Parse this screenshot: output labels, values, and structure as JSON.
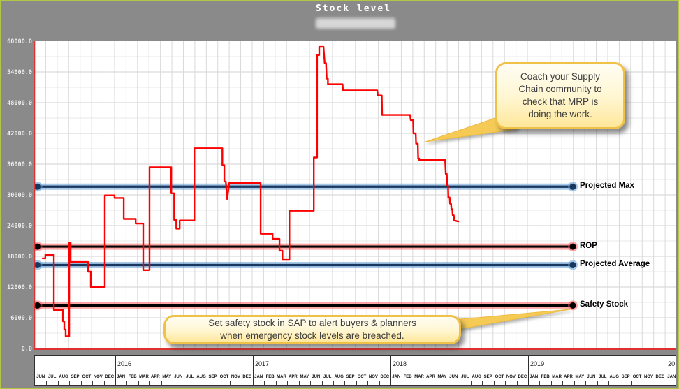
{
  "title": "Stock level",
  "subtitle": {
    "redacted": true
  },
  "chart_data": {
    "type": "line",
    "title": "Stock level",
    "xlabel": "",
    "ylabel": "",
    "ylim": [
      0,
      60000
    ],
    "y_tick_step": 6000,
    "y_minor_step": 3000,
    "y_tick_labels": [
      "60000.0",
      "54000.0",
      "48000.0",
      "42000.0",
      "36000.0",
      "30000.0",
      "24000.0",
      "18000.0",
      "12000.0",
      "6000.0",
      "0.0"
    ],
    "grid": true,
    "x_months": [
      "JUN",
      "JUL",
      "AUG",
      "SEP",
      "OCT",
      "NOV",
      "DEC",
      "JAN",
      "FEB",
      "MAR",
      "APR",
      "MAY",
      "JUN",
      "JUL",
      "AUG",
      "SEP",
      "OCT",
      "NOV",
      "DEC",
      "JAN",
      "FEB",
      "MAR",
      "APR",
      "MAY",
      "JUN",
      "JUL",
      "AUG",
      "SEP",
      "OCT",
      "NOV",
      "DEC",
      "JAN",
      "FEB",
      "MAR",
      "APR",
      "MAY",
      "JUN",
      "JUL",
      "AUG",
      "SEP",
      "OCT",
      "NOV",
      "DEC",
      "JAN",
      "FEB",
      "MAR",
      "APR",
      "MAY",
      "JUN",
      "JUL",
      "AUG",
      "SEP",
      "OCT",
      "NOV",
      "DEC",
      "JAN"
    ],
    "x_years": [
      {
        "label": "",
        "months": 7
      },
      {
        "label": "2016",
        "months": 12
      },
      {
        "label": "2017",
        "months": 12
      },
      {
        "label": "2018",
        "months": 12
      },
      {
        "label": "2019",
        "months": 12
      },
      {
        "label": "20",
        "months": 1
      }
    ],
    "series": {
      "name": "Stock level",
      "color": "#ff0000",
      "x_unit": "months since JUN 2015",
      "points": [
        [
          0.73,
          17600
        ],
        [
          0.97,
          17600
        ],
        [
          0.97,
          18300
        ],
        [
          1.71,
          18300
        ],
        [
          1.71,
          7500
        ],
        [
          2.5,
          7500
        ],
        [
          2.5,
          5300
        ],
        [
          2.62,
          5300
        ],
        [
          2.62,
          3700
        ],
        [
          2.74,
          3700
        ],
        [
          2.74,
          2400
        ],
        [
          3.05,
          2400
        ],
        [
          3.05,
          20700
        ],
        [
          3.17,
          20700
        ],
        [
          3.17,
          16900
        ],
        [
          4.69,
          16900
        ],
        [
          4.69,
          15000
        ],
        [
          4.93,
          15000
        ],
        [
          4.93,
          12000
        ],
        [
          6.15,
          12000
        ],
        [
          6.15,
          29900
        ],
        [
          7.0,
          29900
        ],
        [
          7.0,
          29400
        ],
        [
          7.8,
          29400
        ],
        [
          7.8,
          25300
        ],
        [
          8.84,
          25300
        ],
        [
          8.84,
          24400
        ],
        [
          9.5,
          24400
        ],
        [
          9.5,
          15300
        ],
        [
          10.05,
          15300
        ],
        [
          10.05,
          35400
        ],
        [
          11.95,
          35400
        ],
        [
          11.95,
          30300
        ],
        [
          12.2,
          30300
        ],
        [
          12.2,
          25100
        ],
        [
          12.38,
          25100
        ],
        [
          12.38,
          23400
        ],
        [
          12.68,
          23400
        ],
        [
          12.68,
          25000
        ],
        [
          13.96,
          25000
        ],
        [
          13.96,
          39100
        ],
        [
          16.4,
          39100
        ],
        [
          16.4,
          35800
        ],
        [
          16.57,
          35800
        ],
        [
          16.57,
          32600
        ],
        [
          16.7,
          32600
        ],
        [
          16.82,
          29200
        ],
        [
          17.0,
          32300
        ],
        [
          19.74,
          32300
        ],
        [
          19.74,
          22400
        ],
        [
          20.78,
          22400
        ],
        [
          20.78,
          21400
        ],
        [
          21.38,
          21400
        ],
        [
          21.38,
          19100
        ],
        [
          21.64,
          19100
        ],
        [
          21.64,
          17300
        ],
        [
          22.25,
          17300
        ],
        [
          22.25,
          26900
        ],
        [
          24.37,
          26900
        ],
        [
          24.37,
          37300
        ],
        [
          24.66,
          37300
        ],
        [
          24.66,
          57300
        ],
        [
          24.85,
          57300
        ],
        [
          24.85,
          58900
        ],
        [
          25.22,
          58900
        ],
        [
          25.32,
          55700
        ],
        [
          25.44,
          55700
        ],
        [
          25.5,
          52700
        ],
        [
          25.6,
          52700
        ],
        [
          25.6,
          51600
        ],
        [
          26.88,
          51600
        ],
        [
          26.92,
          50400
        ],
        [
          29.9,
          50400
        ],
        [
          29.96,
          49400
        ],
        [
          30.3,
          49400
        ],
        [
          30.33,
          45600
        ],
        [
          32.77,
          45600
        ],
        [
          32.82,
          44600
        ],
        [
          33.03,
          44600
        ],
        [
          33.06,
          42000
        ],
        [
          33.26,
          42000
        ],
        [
          33.29,
          40000
        ],
        [
          33.44,
          40000
        ],
        [
          33.47,
          37100
        ],
        [
          33.56,
          37100
        ],
        [
          33.56,
          36800
        ],
        [
          35.82,
          36800
        ],
        [
          35.88,
          34100
        ],
        [
          35.97,
          34100
        ],
        [
          36.0,
          31800
        ],
        [
          36.08,
          31800
        ],
        [
          36.1,
          29500
        ],
        [
          36.22,
          29500
        ],
        [
          36.25,
          28300
        ],
        [
          36.34,
          28300
        ],
        [
          36.37,
          27200
        ],
        [
          36.45,
          27200
        ],
        [
          36.48,
          26000
        ],
        [
          36.58,
          26000
        ],
        [
          36.61,
          25000
        ],
        [
          36.97,
          24800
        ]
      ]
    },
    "ref_lines": [
      {
        "label": "Projected Max",
        "value": 31600,
        "line_color": "#17375e",
        "glow_color": "rgba(95,155,213,0.55)"
      },
      {
        "label": "ROP",
        "value": 19900,
        "line_color": "#000000",
        "glow_color": "rgba(255,80,80,0.5)"
      },
      {
        "label": "Projected Average",
        "value": 16300,
        "line_color": "#17375e",
        "glow_color": "rgba(95,155,213,0.55)"
      },
      {
        "label": "Safety Stock",
        "value": 8400,
        "line_color": "#000000",
        "glow_color": "rgba(255,80,80,0.5)"
      }
    ],
    "legend_position": "right-of-line-endpoints"
  },
  "colors": {
    "figure_bg": "#8a8a8a",
    "frame_border": "#b2c748",
    "plot_bg": "#ffffff",
    "series_red": "#ff0000",
    "axis_spine_red": "#e03030",
    "callout_border": "#f0c149",
    "callout_fill": "#ffe79a",
    "title_text": "#ffffff"
  },
  "callouts": [
    {
      "lines": [
        "Coach your Supply",
        "Chain community to",
        "check that MRP is",
        "doing the work."
      ]
    },
    {
      "lines": [
        "Set safety stock in SAP to alert buyers & planners",
        "when emergency stock levels are breached."
      ]
    }
  ]
}
